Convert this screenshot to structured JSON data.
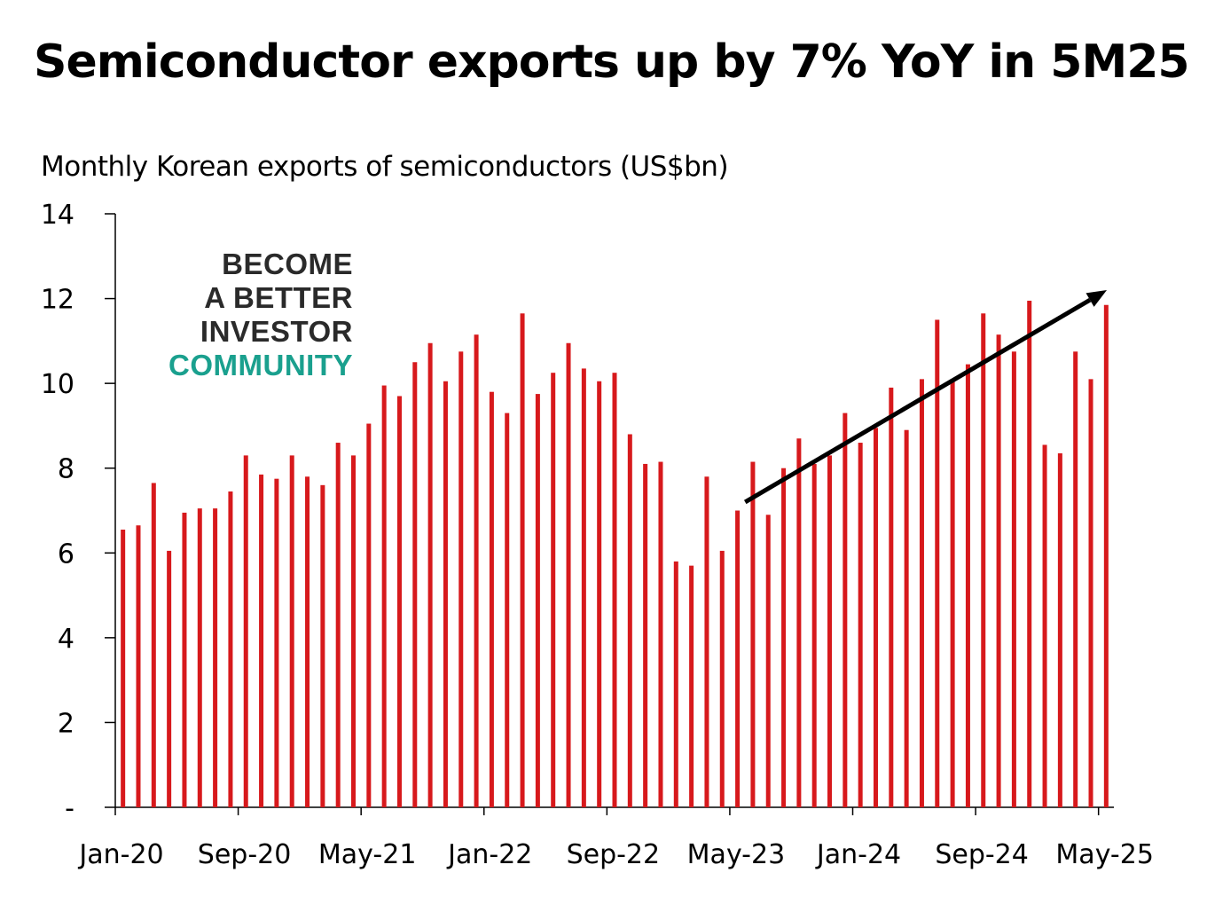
{
  "title": "Semiconductor exports up by 7% YoY in 5M25",
  "subtitle": "Monthly Korean exports of semiconductors (US$bn)",
  "watermark": {
    "line1": "BECOME",
    "line2": "A BETTER",
    "line3": "INVESTOR",
    "line4": "COMMUNITY",
    "colors": {
      "dark": "#2a2a2a",
      "teal": "#1aa08e"
    }
  },
  "colors": {
    "bar": "#d7191c",
    "axis": "#000000",
    "arrow": "#000000"
  },
  "chart_data": {
    "type": "bar",
    "title": "Monthly Korean exports of semiconductors (US$bn)",
    "ylim": [
      0,
      14
    ],
    "yticks": [
      {
        "value": 0,
        "label": "-"
      },
      {
        "value": 2,
        "label": "2"
      },
      {
        "value": 4,
        "label": "4"
      },
      {
        "value": 6,
        "label": "6"
      },
      {
        "value": 8,
        "label": "8"
      },
      {
        "value": 10,
        "label": "10"
      },
      {
        "value": 12,
        "label": "12"
      },
      {
        "value": 14,
        "label": "14"
      }
    ],
    "xtick_labels": [
      {
        "index": 0,
        "label": "Jan-20"
      },
      {
        "index": 8,
        "label": "Sep-20"
      },
      {
        "index": 16,
        "label": "May-21"
      },
      {
        "index": 24,
        "label": "Jan-22"
      },
      {
        "index": 32,
        "label": "Sep-22"
      },
      {
        "index": 40,
        "label": "May-23"
      },
      {
        "index": 48,
        "label": "Jan-24"
      },
      {
        "index": 56,
        "label": "Sep-24"
      },
      {
        "index": 64,
        "label": "May-25"
      }
    ],
    "categories": [
      "Jan-20",
      "Feb-20",
      "Mar-20",
      "Apr-20",
      "May-20",
      "Jun-20",
      "Jul-20",
      "Aug-20",
      "Sep-20",
      "Oct-20",
      "Nov-20",
      "Dec-20",
      "Jan-21",
      "Feb-21",
      "Mar-21",
      "Apr-21",
      "May-21",
      "Jun-21",
      "Jul-21",
      "Aug-21",
      "Sep-21",
      "Oct-21",
      "Nov-21",
      "Dec-21",
      "Jan-22",
      "Feb-22",
      "Mar-22",
      "Apr-22",
      "May-22",
      "Jun-22",
      "Jul-22",
      "Aug-22",
      "Sep-22",
      "Oct-22",
      "Nov-22",
      "Dec-22",
      "Jan-23",
      "Feb-23",
      "Mar-23",
      "Apr-23",
      "May-23",
      "Jun-23",
      "Jul-23",
      "Aug-23",
      "Sep-23",
      "Oct-23",
      "Nov-23",
      "Dec-23",
      "Jan-24",
      "Feb-24",
      "Mar-24",
      "Apr-24",
      "May-24",
      "Jun-24",
      "Jul-24",
      "Aug-24",
      "Sep-24",
      "Oct-24",
      "Nov-24",
      "Dec-24",
      "Jan-25",
      "Feb-25",
      "Mar-25",
      "Apr-25",
      "May-25"
    ],
    "values": [
      6.55,
      6.65,
      7.65,
      6.05,
      6.95,
      7.05,
      7.05,
      7.45,
      8.3,
      7.85,
      7.75,
      8.3,
      7.8,
      7.6,
      8.6,
      8.3,
      9.05,
      9.95,
      9.7,
      10.5,
      10.95,
      10.05,
      10.75,
      11.15,
      9.8,
      9.3,
      11.65,
      9.75,
      10.25,
      10.95,
      10.35,
      10.05,
      10.25,
      8.8,
      8.1,
      8.15,
      5.8,
      5.7,
      7.8,
      6.05,
      7.0,
      8.15,
      6.9,
      8.0,
      8.7,
      8.1,
      8.3,
      9.3,
      8.6,
      8.95,
      9.9,
      8.9,
      10.1,
      11.5,
      10.1,
      10.45,
      11.65,
      11.15,
      10.75,
      11.95,
      8.55,
      8.35,
      10.75,
      10.1,
      11.85
    ],
    "trend_arrow": {
      "from_index": 41,
      "from_value": 7.2,
      "to_index": 65,
      "to_value": 12.2
    },
    "grid": false,
    "legend": "none"
  }
}
